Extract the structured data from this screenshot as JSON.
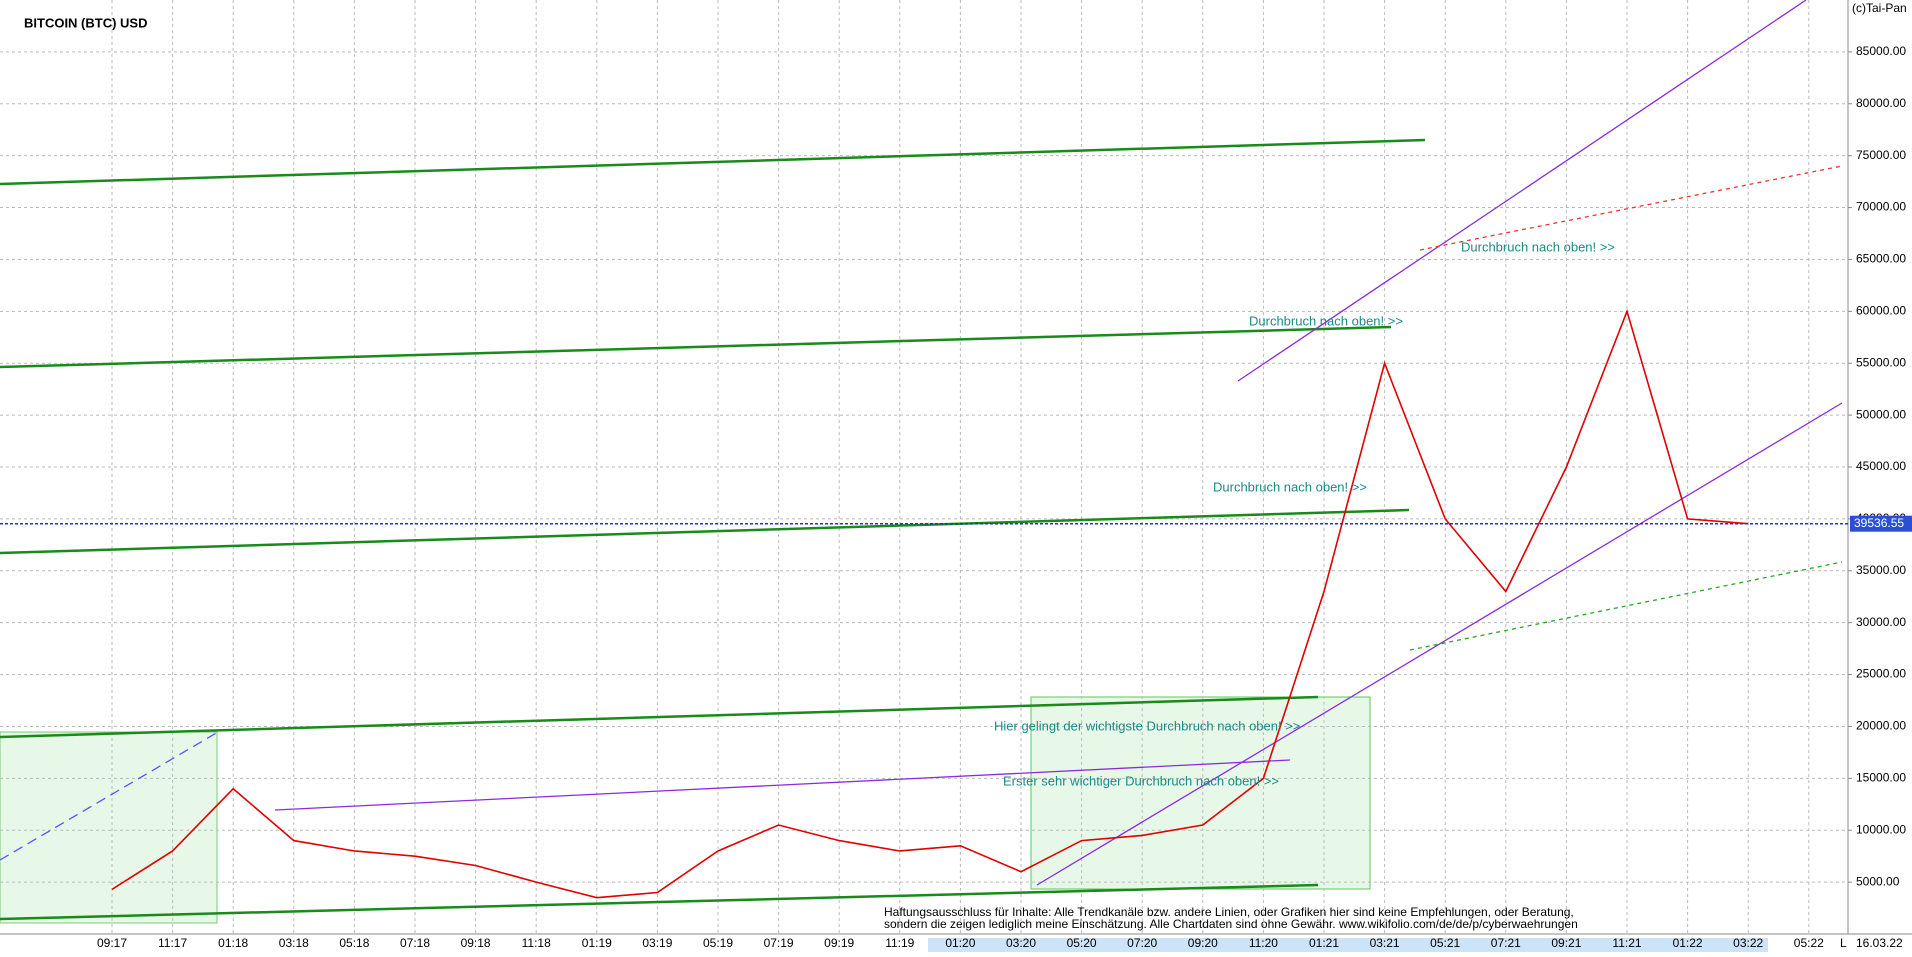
{
  "chart_data": {
    "type": "line",
    "title": "BITCOIN (BTC) USD",
    "copyright": "(c)Tai-Pan",
    "categories": [
      "09:17",
      "11:17",
      "01:18",
      "03:18",
      "05:18",
      "07:18",
      "09:18",
      "11:18",
      "01:19",
      "03:19",
      "05:19",
      "07:19",
      "09:19",
      "11:19",
      "01:20",
      "03:20",
      "05:20",
      "07:20",
      "09:20",
      "11:20",
      "01:21",
      "03:21",
      "05:21",
      "07:21",
      "09:21",
      "11:21",
      "01:22",
      "03:22",
      "05:22"
    ],
    "series": [
      {
        "name": "BTC",
        "color": "#e00000",
        "values": [
          4300,
          8000,
          14000,
          9000,
          8000,
          7500,
          6600,
          5000,
          3500,
          4000,
          8000,
          10500,
          9000,
          8000,
          8500,
          6000,
          9000,
          9500,
          10500,
          15000,
          33000,
          55000,
          40000,
          33000,
          45000,
          60000,
          40000,
          39536.55,
          null
        ]
      }
    ],
    "ylim": [
      0,
      90000
    ],
    "yticks": [
      {
        "value": 5000,
        "label": "5000.00"
      },
      {
        "value": 10000,
        "label": "10000.00"
      },
      {
        "value": 15000,
        "label": "15000.00"
      },
      {
        "value": 20000,
        "label": "20000.00"
      },
      {
        "value": 25000,
        "label": "25000.00"
      },
      {
        "value": 30000,
        "label": "30000.00"
      },
      {
        "value": 35000,
        "label": "35000.00"
      },
      {
        "value": 40000,
        "label": "40000.00"
      },
      {
        "value": 45000,
        "label": "45000.00"
      },
      {
        "value": 50000,
        "label": "50000.00"
      },
      {
        "value": 55000,
        "label": "55000.00"
      },
      {
        "value": 60000,
        "label": "60000.00"
      },
      {
        "value": 65000,
        "label": "65000.00"
      },
      {
        "value": 70000,
        "label": "70000.00"
      },
      {
        "value": 75000,
        "label": "75000.00"
      },
      {
        "value": 80000,
        "label": "80000.00"
      },
      {
        "value": 85000,
        "label": "85000.00"
      }
    ],
    "grid": true,
    "last_price": 39536.55,
    "date": "16.03.22",
    "scale_mode": "L",
    "annotations": [
      "Durchbruch nach oben! >>",
      "Durchbruch nach oben! >>",
      "Durchbruch nach oben! >>",
      "Hier gelingt der wichtigste Durchbruch nach oben! >>",
      "Erster sehr wichtiger Durchbruch nach oben! >>"
    ],
    "disclaimer": [
      "Haftungsausschluss für Inhalte: Alle Trendkanäle bzw. andere Linien, oder Grafiken hier sind keine Empfehlungen, oder Beratung,",
      "sondern die zeigen lediglich meine  Einschätzung. Alle Chartdaten sind ohne Gewähr.  www.wikifolio.com/de/de/p/cyberwaehrungen"
    ]
  }
}
